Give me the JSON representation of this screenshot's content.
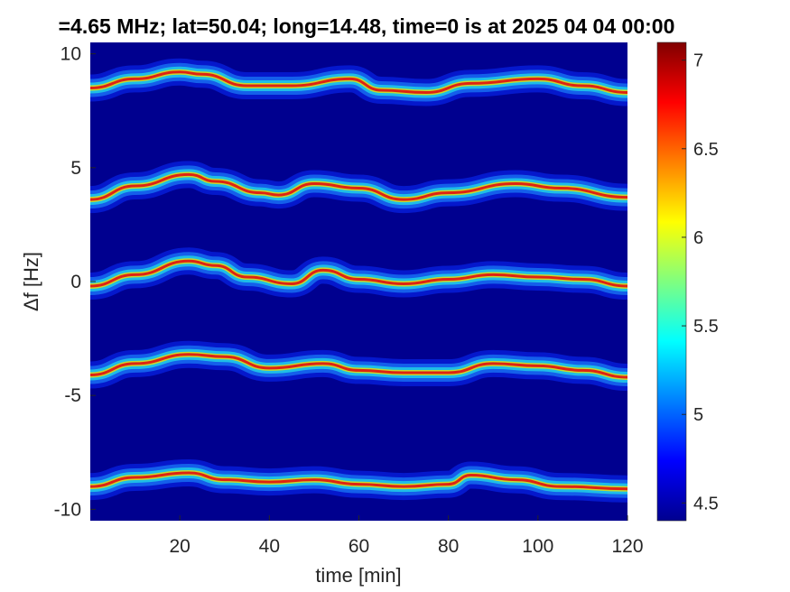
{
  "chart_data": {
    "type": "heatmap",
    "title": "=4.65 MHz;  lat=50.04; long=14.48, time=0 is at 2025 04 04 00:00",
    "xlabel": "time [min]",
    "ylabel": "Δf [Hz]",
    "xlim": [
      0,
      120
    ],
    "ylim": [
      -10.5,
      10.5
    ],
    "xticks": [
      20,
      40,
      60,
      80,
      100,
      120
    ],
    "yticks": [
      10,
      5,
      0,
      -5,
      -10
    ],
    "colorbar": {
      "colormap": "jet",
      "range": [
        4.4,
        7.1
      ],
      "ticks": [
        4.5,
        5,
        5.5,
        6,
        6.5,
        7
      ]
    },
    "grid": false,
    "series": [
      {
        "offset_hz": 8.5,
        "x": [
          0,
          10,
          20,
          25,
          35,
          45,
          58,
          65,
          75,
          85,
          100,
          110,
          120
        ],
        "y": [
          8.5,
          8.9,
          9.2,
          9.1,
          8.6,
          8.6,
          8.9,
          8.4,
          8.3,
          8.7,
          8.9,
          8.6,
          8.3
        ]
      },
      {
        "offset_hz": 3.8,
        "x": [
          0,
          10,
          22,
          28,
          38,
          42,
          50,
          60,
          70,
          80,
          95,
          105,
          120
        ],
        "y": [
          3.6,
          4.2,
          4.7,
          4.4,
          3.9,
          3.8,
          4.3,
          4.1,
          3.6,
          3.9,
          4.3,
          4.1,
          3.7
        ]
      },
      {
        "offset_hz": 0,
        "x": [
          0,
          10,
          22,
          28,
          35,
          45,
          52,
          60,
          70,
          80,
          90,
          100,
          110,
          120
        ],
        "y": [
          -0.2,
          0.3,
          0.9,
          0.7,
          0.2,
          -0.1,
          0.5,
          0.1,
          -0.1,
          0.1,
          0.3,
          0.2,
          0.1,
          -0.2
        ]
      },
      {
        "offset_hz": -4,
        "x": [
          0,
          10,
          22,
          30,
          40,
          52,
          60,
          70,
          80,
          90,
          100,
          110,
          120
        ],
        "y": [
          -4.1,
          -3.6,
          -3.2,
          -3.3,
          -3.8,
          -3.6,
          -3.9,
          -4.0,
          -4.0,
          -3.6,
          -3.7,
          -3.9,
          -4.2
        ]
      },
      {
        "offset_hz": -9,
        "x": [
          0,
          10,
          22,
          30,
          40,
          50,
          60,
          70,
          80,
          85,
          95,
          105,
          120
        ],
        "y": [
          -9.0,
          -8.6,
          -8.4,
          -8.7,
          -8.8,
          -8.7,
          -8.9,
          -9.0,
          -8.9,
          -8.5,
          -8.7,
          -9.0,
          -9.1
        ]
      }
    ]
  }
}
